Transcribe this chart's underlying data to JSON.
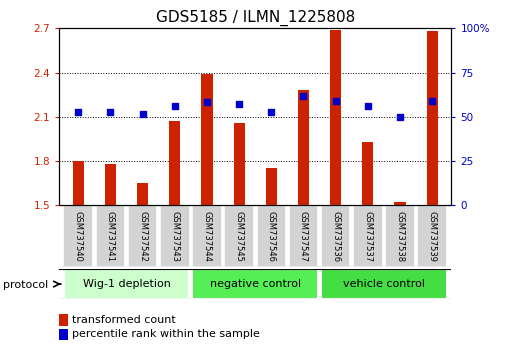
{
  "title": "GDS5185 / ILMN_1225808",
  "samples": [
    "GSM737540",
    "GSM737541",
    "GSM737542",
    "GSM737543",
    "GSM737544",
    "GSM737545",
    "GSM737546",
    "GSM737547",
    "GSM737536",
    "GSM737537",
    "GSM737538",
    "GSM737539"
  ],
  "bar_values": [
    1.8,
    1.78,
    1.65,
    2.07,
    2.39,
    2.06,
    1.75,
    2.28,
    2.69,
    1.93,
    1.52,
    2.68
  ],
  "dot_values": [
    2.13,
    2.13,
    2.12,
    2.17,
    2.2,
    2.19,
    2.13,
    2.24,
    2.21,
    2.17,
    2.1,
    2.21
  ],
  "bar_base": 1.5,
  "ylim_left": [
    1.5,
    2.7
  ],
  "ylim_right": [
    0,
    100
  ],
  "yticks_left": [
    1.5,
    1.8,
    2.1,
    2.4,
    2.7
  ],
  "ytick_labels_left": [
    "1.5",
    "1.8",
    "2.1",
    "2.4",
    "2.7"
  ],
  "yticks_right": [
    0,
    25,
    50,
    75,
    100
  ],
  "ytick_labels_right": [
    "0",
    "25",
    "50",
    "75",
    "100%"
  ],
  "bar_color": "#cc2200",
  "dot_color": "#0000cc",
  "groups": [
    {
      "label": "Wig-1 depletion",
      "start": 0,
      "end": 3,
      "color": "#ccffcc"
    },
    {
      "label": "negative control",
      "start": 4,
      "end": 7,
      "color": "#55ee55"
    },
    {
      "label": "vehicle control",
      "start": 8,
      "end": 11,
      "color": "#44dd44"
    }
  ],
  "protocol_label": "protocol",
  "legend_bar_label": "transformed count",
  "legend_dot_label": "percentile rank within the sample",
  "tick_label_color_left": "#cc2200",
  "tick_label_color_right": "#0000cc",
  "title_fontsize": 11,
  "axis_fontsize": 7.5,
  "legend_fontsize": 8,
  "group_label_fontsize": 8,
  "sample_label_fontsize": 6,
  "bar_width": 0.35
}
